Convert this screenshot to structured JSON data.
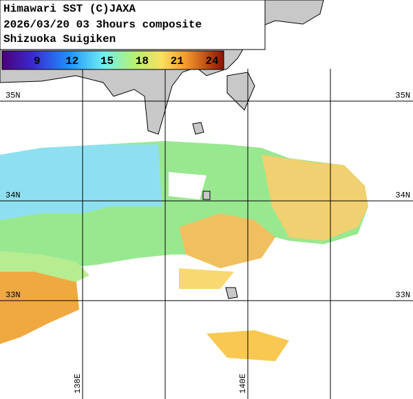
{
  "header": {
    "lines": [
      "Himawari SST (C)JAXA",
      "2026/03/20 03 3hours composite",
      "Shizuoka Suigiken"
    ]
  },
  "colorbar": {
    "range": [
      6,
      25
    ],
    "ticks": [
      9,
      12,
      15,
      18,
      21,
      24
    ]
  },
  "lat_lines": [
    {
      "value": 35,
      "label": "35N"
    },
    {
      "value": 34,
      "label": "34N"
    },
    {
      "value": 33,
      "label": "33N"
    }
  ],
  "lon_lines": [
    {
      "value": 138,
      "label": "138E"
    },
    {
      "value": 139
    },
    {
      "value": 140,
      "label": "140E"
    },
    {
      "value": 141
    }
  ]
}
